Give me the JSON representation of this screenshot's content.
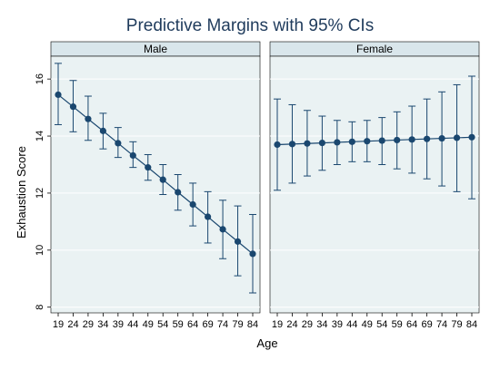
{
  "chart_data": {
    "type": "line",
    "title": "Predictive Margins with 95% CIs",
    "xlabel": "Age",
    "ylabel": "Exhaustion Score",
    "x_ticks": [
      19,
      24,
      29,
      34,
      39,
      44,
      49,
      54,
      59,
      64,
      69,
      74,
      79,
      84
    ],
    "y_ticks": [
      8,
      10,
      12,
      14,
      16
    ],
    "ylim": [
      7.8,
      16.8
    ],
    "grid": true,
    "colors": {
      "panel_bg": "#eaf2f3",
      "strip_bg": "#d9e6eb",
      "series": "#1a476f",
      "outer_bg": "#ffffff"
    },
    "panels": [
      {
        "label": "Male",
        "x": [
          19,
          24,
          29,
          34,
          39,
          44,
          49,
          54,
          59,
          64,
          69,
          74,
          79,
          84
        ],
        "y": [
          15.45,
          15.03,
          14.6,
          14.18,
          13.75,
          13.32,
          12.9,
          12.47,
          12.03,
          11.6,
          11.17,
          10.73,
          10.3,
          9.87
        ],
        "lower": [
          14.4,
          14.15,
          13.85,
          13.55,
          13.25,
          12.9,
          12.45,
          11.95,
          11.4,
          10.85,
          10.25,
          9.7,
          9.1,
          8.5
        ],
        "upper": [
          16.55,
          15.95,
          15.4,
          14.8,
          14.3,
          13.8,
          13.35,
          13.0,
          12.65,
          12.35,
          12.05,
          11.75,
          11.55,
          11.25
        ]
      },
      {
        "label": "Female",
        "x": [
          19,
          24,
          29,
          34,
          39,
          44,
          49,
          54,
          59,
          64,
          69,
          74,
          79,
          84
        ],
        "y": [
          13.7,
          13.72,
          13.74,
          13.76,
          13.78,
          13.8,
          13.82,
          13.84,
          13.86,
          13.88,
          13.9,
          13.92,
          13.94,
          13.96
        ],
        "lower": [
          12.1,
          12.35,
          12.6,
          12.8,
          13.0,
          13.1,
          13.1,
          13.0,
          12.85,
          12.7,
          12.5,
          12.25,
          12.05,
          11.8
        ],
        "upper": [
          15.3,
          15.1,
          14.9,
          14.7,
          14.55,
          14.5,
          14.55,
          14.65,
          14.85,
          15.05,
          15.3,
          15.55,
          15.8,
          16.1
        ]
      }
    ]
  }
}
